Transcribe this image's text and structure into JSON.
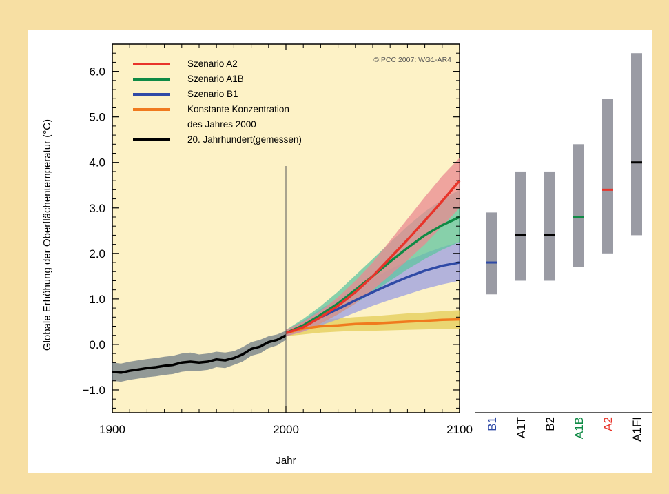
{
  "chart_data": {
    "type": "line",
    "ylabel": "Globale Erhöhung der Oberflächentemperatur (°C)",
    "xlabel": "Jahr",
    "watermark": "©IPCC 2007: WG1-AR4",
    "xlim": [
      1900,
      2100
    ],
    "ylim": [
      -1.5,
      6.6
    ],
    "x_ticks": [
      1900,
      2000,
      2100
    ],
    "x_tick_labels": [
      "1900",
      "2000",
      "2100"
    ],
    "y_ticks": [
      -1.0,
      0.0,
      1.0,
      2.0,
      3.0,
      4.0,
      5.0,
      6.0
    ],
    "y_tick_labels": [
      "−1.0",
      "0.0",
      "1.0",
      "2.0",
      "3.0",
      "4.0",
      "5.0",
      "6.0"
    ],
    "legend": [
      {
        "lines": [
          "Szenario A2"
        ],
        "color": "#e8342a"
      },
      {
        "lines": [
          "Szenario A1B"
        ],
        "color": "#0f8a45"
      },
      {
        "lines": [
          "Szenario B1"
        ],
        "color": "#2f4aa6"
      },
      {
        "lines": [
          "Konstante Konzentration",
          "des Jahres 2000"
        ],
        "color": "#f07a1e"
      },
      {
        "lines": [
          "20. Jahrhundert(gemessen)"
        ],
        "color": "#000000"
      }
    ],
    "series": [
      {
        "name": "20. Jahrhundert(gemessen)",
        "color": "#000000",
        "band_color": "#6d7b86",
        "x": [
          1900,
          1905,
          1910,
          1915,
          1920,
          1925,
          1930,
          1935,
          1940,
          1945,
          1950,
          1955,
          1960,
          1965,
          1970,
          1975,
          1980,
          1985,
          1990,
          1995,
          2000
        ],
        "y": [
          -0.6,
          -0.62,
          -0.58,
          -0.55,
          -0.52,
          -0.5,
          -0.47,
          -0.45,
          -0.4,
          -0.38,
          -0.4,
          -0.38,
          -0.33,
          -0.35,
          -0.3,
          -0.22,
          -0.1,
          -0.05,
          0.05,
          0.1,
          0.2
        ],
        "lower": [
          -0.8,
          -0.82,
          -0.78,
          -0.75,
          -0.72,
          -0.7,
          -0.67,
          -0.65,
          -0.6,
          -0.58,
          -0.58,
          -0.56,
          -0.5,
          -0.52,
          -0.45,
          -0.38,
          -0.25,
          -0.2,
          -0.08,
          -0.02,
          0.1
        ],
        "upper": [
          -0.4,
          -0.42,
          -0.38,
          -0.35,
          -0.32,
          -0.3,
          -0.27,
          -0.25,
          -0.2,
          -0.18,
          -0.22,
          -0.2,
          -0.16,
          -0.18,
          -0.15,
          -0.06,
          0.05,
          0.1,
          0.18,
          0.22,
          0.3
        ]
      },
      {
        "name": "Konstante Konzentration des Jahres 2000",
        "color": "#f07a1e",
        "band_color": "#e3cc55",
        "x": [
          2000,
          2010,
          2020,
          2030,
          2040,
          2050,
          2060,
          2070,
          2080,
          2090,
          2100
        ],
        "y": [
          0.25,
          0.35,
          0.4,
          0.42,
          0.45,
          0.46,
          0.48,
          0.5,
          0.52,
          0.54,
          0.55
        ],
        "lower": [
          0.18,
          0.22,
          0.26,
          0.28,
          0.3,
          0.3,
          0.31,
          0.32,
          0.33,
          0.34,
          0.34
        ],
        "upper": [
          0.32,
          0.48,
          0.54,
          0.57,
          0.6,
          0.62,
          0.65,
          0.68,
          0.7,
          0.73,
          0.75
        ]
      },
      {
        "name": "Szenario B1",
        "color": "#2f4aa6",
        "band_color": "#9a9ee2",
        "x": [
          2000,
          2010,
          2020,
          2030,
          2040,
          2050,
          2060,
          2070,
          2080,
          2090,
          2100
        ],
        "y": [
          0.25,
          0.4,
          0.6,
          0.78,
          0.97,
          1.15,
          1.32,
          1.48,
          1.62,
          1.73,
          1.8
        ],
        "lower": [
          0.18,
          0.28,
          0.42,
          0.55,
          0.7,
          0.85,
          0.98,
          1.1,
          1.22,
          1.32,
          1.4
        ],
        "upper": [
          0.32,
          0.52,
          0.78,
          1.0,
          1.24,
          1.45,
          1.65,
          1.84,
          2.0,
          2.14,
          2.25
        ]
      },
      {
        "name": "Szenario A1B",
        "color": "#0f8a45",
        "band_color": "#5fc4a0",
        "x": [
          2000,
          2010,
          2020,
          2030,
          2040,
          2050,
          2060,
          2070,
          2080,
          2090,
          2100
        ],
        "y": [
          0.25,
          0.42,
          0.65,
          0.9,
          1.2,
          1.5,
          1.82,
          2.12,
          2.4,
          2.62,
          2.8
        ],
        "lower": [
          0.18,
          0.3,
          0.46,
          0.66,
          0.9,
          1.15,
          1.4,
          1.65,
          1.88,
          2.08,
          2.25
        ],
        "upper": [
          0.32,
          0.56,
          0.84,
          1.16,
          1.52,
          1.88,
          2.24,
          2.6,
          2.92,
          3.18,
          3.4
        ]
      },
      {
        "name": "Szenario A2",
        "color": "#e8342a",
        "band_color": "#ea8a90",
        "x": [
          2000,
          2010,
          2020,
          2030,
          2040,
          2050,
          2060,
          2070,
          2080,
          2090,
          2100
        ],
        "y": [
          0.25,
          0.38,
          0.6,
          0.85,
          1.15,
          1.5,
          1.9,
          2.3,
          2.72,
          3.15,
          3.6
        ],
        "lower": [
          0.18,
          0.28,
          0.46,
          0.66,
          0.9,
          1.2,
          1.52,
          1.85,
          2.2,
          2.6,
          3.0
        ],
        "upper": [
          0.32,
          0.5,
          0.74,
          1.04,
          1.4,
          1.8,
          2.28,
          2.76,
          3.24,
          3.7,
          4.1
        ]
      }
    ],
    "scenario_ranges": [
      {
        "name": "B1",
        "low": 1.1,
        "high": 2.9,
        "best": 1.8,
        "color": "#2f4aa6"
      },
      {
        "name": "A1T",
        "low": 1.4,
        "high": 3.8,
        "best": 2.4,
        "color": "#000000"
      },
      {
        "name": "B2",
        "low": 1.4,
        "high": 3.8,
        "best": 2.4,
        "color": "#000000"
      },
      {
        "name": "A1B",
        "low": 1.7,
        "high": 4.4,
        "best": 2.8,
        "color": "#0f8a45"
      },
      {
        "name": "A2",
        "low": 2.0,
        "high": 5.4,
        "best": 3.4,
        "color": "#e8342a"
      },
      {
        "name": "A1FI",
        "low": 2.4,
        "high": 6.4,
        "best": 4.0,
        "color": "#000000"
      }
    ]
  }
}
